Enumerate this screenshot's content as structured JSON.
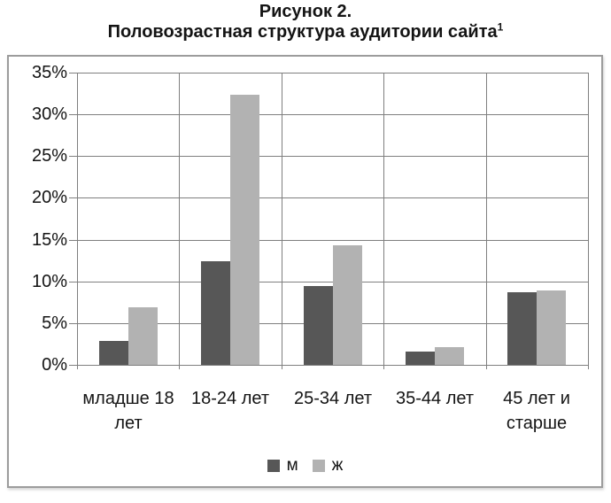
{
  "title": {
    "line1": "Рисунок 2.",
    "line2": "Половозрастная структура аудитории сайта",
    "footnote_mark": "1"
  },
  "chart_data": {
    "type": "bar",
    "title": "Половозрастная структура аудитории сайта",
    "categories": [
      "младше 18 лет",
      "18-24 лет",
      "25-34 лет",
      "35-44 лет",
      "45 лет и старше"
    ],
    "series": [
      {
        "name": "м",
        "color": "#575757",
        "values": [
          2.9,
          12.4,
          9.4,
          1.6,
          8.7
        ]
      },
      {
        "name": "ж",
        "color": "#b2b2b2",
        "values": [
          6.9,
          32.4,
          14.3,
          2.1,
          8.9
        ]
      }
    ],
    "xlabel": "",
    "ylabel": "",
    "ylim": [
      0,
      35
    ],
    "ytick_step": 5,
    "ytick_labels": [
      "0%",
      "5%",
      "10%",
      "15%",
      "20%",
      "25%",
      "30%",
      "35%"
    ],
    "grid": true,
    "legend_position": "bottom",
    "colors": {
      "grid_line": "#7f7f7f",
      "frame_border": "#9c9c9c",
      "text": "#141414"
    }
  }
}
